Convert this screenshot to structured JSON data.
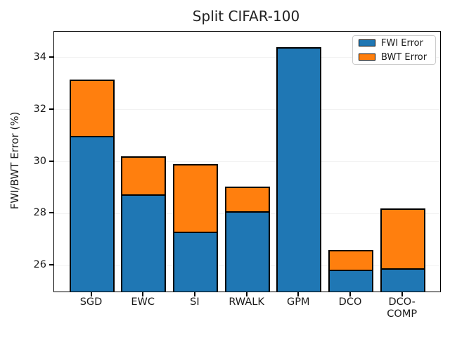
{
  "window": {
    "title": "Split CIFAR-100"
  },
  "chart_data": {
    "type": "bar",
    "stacked": true,
    "title": "Split CIFAR-100",
    "xlabel": "",
    "ylabel": "FWI/BWT Error (%)",
    "categories": [
      "SGD",
      "EWC",
      "SI",
      "RWALK",
      "GPM",
      "DCO",
      "DCO-\nCOMP"
    ],
    "series": [
      {
        "name": "FWI Error",
        "color": "#1f77b4",
        "values": [
          31.0,
          28.75,
          27.3,
          28.1,
          34.4,
          25.85,
          25.9
        ]
      },
      {
        "name": "BWT Error",
        "color": "#ff7f0e",
        "values": [
          2.15,
          1.45,
          2.6,
          0.95,
          0.0,
          0.75,
          2.3
        ]
      }
    ],
    "stack_totals": [
      33.15,
      30.2,
      29.9,
      29.05,
      34.4,
      26.6,
      28.2
    ],
    "ylim": [
      25,
      35
    ],
    "yticks": [
      26,
      28,
      30,
      32,
      34
    ],
    "grid": true,
    "grid_color": "#f2f2f2",
    "bar_edge_color": "#000000",
    "legend_position": "upper right",
    "legend_entries": [
      "FWI Error",
      "BWT Error"
    ]
  }
}
